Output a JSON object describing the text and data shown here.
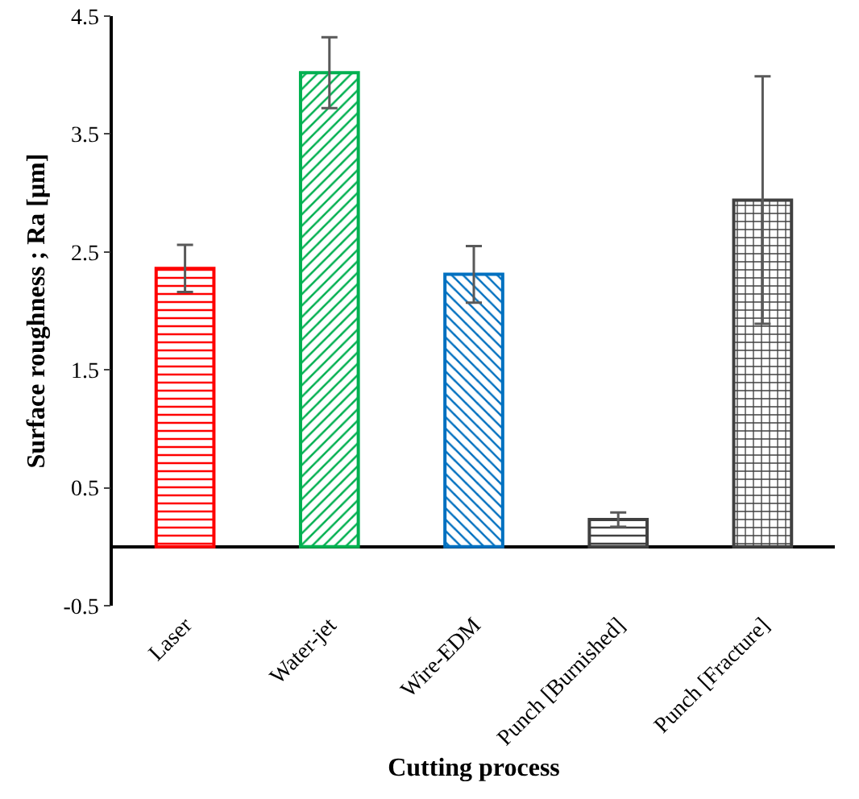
{
  "chart_data": {
    "type": "bar",
    "xlabel": "Cutting process",
    "ylabel": "Surface roughness ; Ra [μm]",
    "categories": [
      "Laser",
      "Water-jet",
      "Wire-EDM",
      "Punch [Burnished]",
      "Punch [Fracture]"
    ],
    "values": [
      2.36,
      4.02,
      2.31,
      0.23,
      2.94
    ],
    "errors": [
      0.2,
      0.3,
      0.24,
      0.06,
      1.05
    ],
    "colors": [
      "#ff0000",
      "#00b050",
      "#0070c0",
      "#404040",
      "#404040"
    ],
    "ylim": [
      -0.5,
      4.5
    ],
    "yticks": [
      -0.5,
      0.5,
      1.5,
      2.5,
      3.5,
      4.5
    ],
    "grid": false
  }
}
